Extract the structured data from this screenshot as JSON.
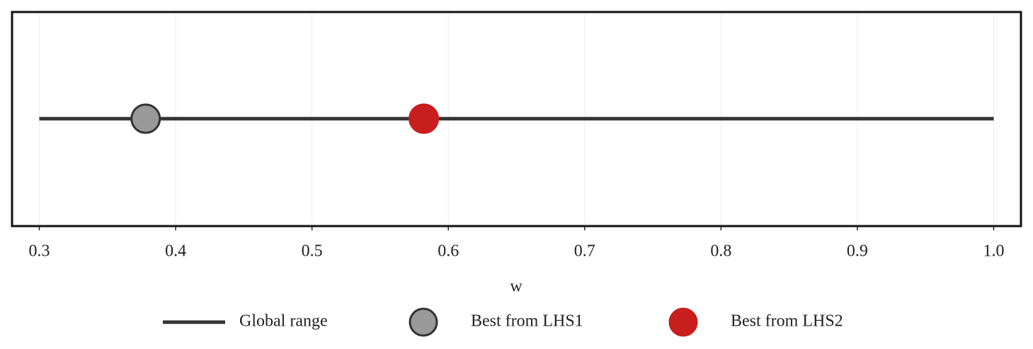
{
  "chart_data": {
    "type": "range-dot",
    "xlabel": "w",
    "xlim": [
      0.28,
      1.02
    ],
    "xticks": [
      0.3,
      0.4,
      0.5,
      0.6,
      0.7,
      0.8,
      0.9,
      {
        "value": 1,
        "label": "1.0"
      }
    ],
    "grid": true,
    "legend": "bottom",
    "series": [
      {
        "name": "Global range",
        "color": "#333333",
        "values": [
          0.3,
          1
        ]
      },
      {
        "name": "Best from LHS1",
        "color": "#999999",
        "values": [
          0.378
        ]
      },
      {
        "name": "Best from LHS2",
        "color": "#c81e1e",
        "values": [
          0.582
        ]
      }
    ]
  }
}
